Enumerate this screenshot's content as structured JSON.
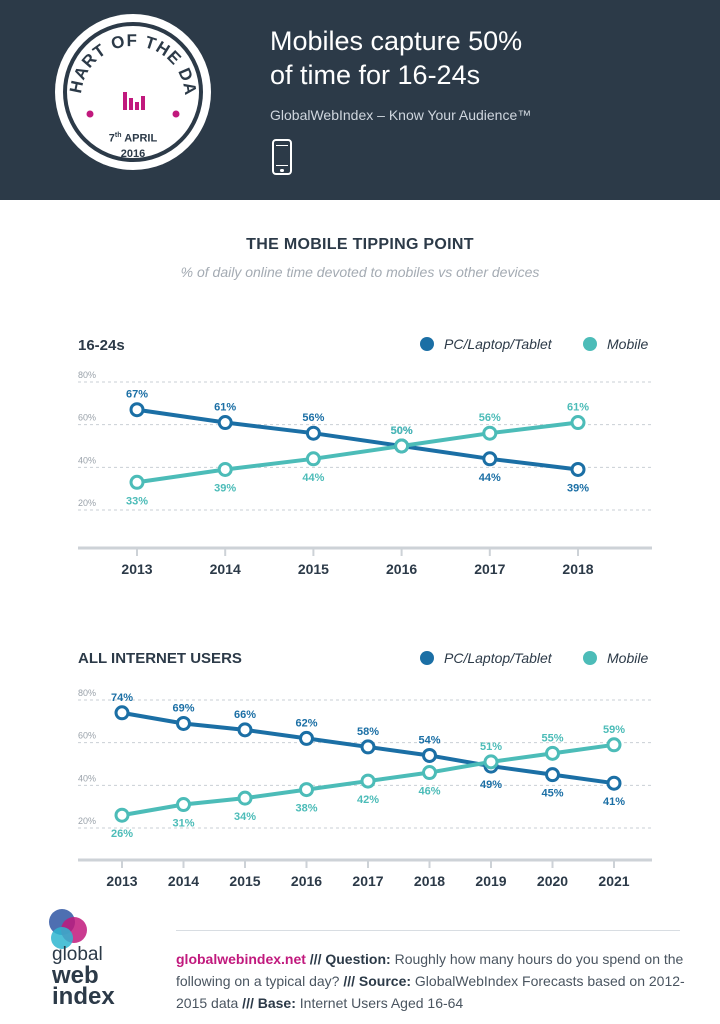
{
  "header": {
    "title_line1": "Mobiles capture 50%",
    "title_line2": "of time for 16-24s",
    "brand_line": "GlobalWebIndex – Know Your Audience™",
    "badge_text": "CHART OF THE DAY",
    "badge_day": "7",
    "badge_day_suffix": "th",
    "badge_month": "APRIL",
    "badge_year": "2016",
    "icon": "phone-icon"
  },
  "heading": "THE MOBILE TIPPING POINT",
  "subheading": "% of daily online time devoted to mobiles vs other devices",
  "colors": {
    "pc": "#1b6fa5",
    "mobile": "#4cbcb8",
    "header_bg": "#2c3a48",
    "accent": "#c1197d"
  },
  "legend": {
    "pc": "PC/Laptop/Tablet",
    "mobile": "Mobile"
  },
  "chart_data": [
    {
      "type": "line",
      "title": "16-24s",
      "x": [
        "2013",
        "2014",
        "2015",
        "2016",
        "2017",
        "2018"
      ],
      "yticks": [
        "80%",
        "60%",
        "40%",
        "20%"
      ],
      "ylim": [
        10,
        80
      ],
      "grid": true,
      "legend": "top-right",
      "series": [
        {
          "name": "PC/Laptop/Tablet",
          "values": [
            67,
            61,
            56,
            50,
            44,
            39
          ],
          "labels": [
            "67%",
            "61%",
            "56%",
            "50%",
            "44%",
            "39%"
          ]
        },
        {
          "name": "Mobile",
          "values": [
            33,
            39,
            44,
            50,
            56,
            61
          ],
          "labels": [
            "33%",
            "39%",
            "44%",
            "50%",
            "56%",
            "61%"
          ]
        }
      ]
    },
    {
      "type": "line",
      "title": "ALL INTERNET USERS",
      "x": [
        "2013",
        "2014",
        "2015",
        "2016",
        "2017",
        "2018",
        "2019",
        "2020",
        "2021"
      ],
      "yticks": [
        "80%",
        "60%",
        "40%",
        "20%"
      ],
      "ylim": [
        10,
        80
      ],
      "grid": true,
      "legend": "top-right",
      "series": [
        {
          "name": "PC/Laptop/Tablet",
          "values": [
            74,
            69,
            66,
            62,
            58,
            54,
            49,
            45,
            41
          ],
          "labels": [
            "74%",
            "69%",
            "66%",
            "62%",
            "58%",
            "54%",
            "49%",
            "45%",
            "41%"
          ]
        },
        {
          "name": "Mobile",
          "values": [
            26,
            31,
            34,
            38,
            42,
            46,
            51,
            55,
            59
          ],
          "labels": [
            "26%",
            "31%",
            "34%",
            "38%",
            "42%",
            "46%",
            "51%",
            "55%",
            "59%"
          ]
        }
      ]
    }
  ],
  "footer": {
    "logo_line1": "global",
    "logo_line2": "web",
    "logo_line3": "index",
    "site": "globalwebindex.net",
    "sep1": " /// ",
    "question_label": "Question:",
    "question_text": " Roughly how many hours do you spend on the following on a typical day?",
    "sep2": " /// ",
    "source_label": "Source:",
    "source_text": " GlobalWebIndex Forecasts based on 2012-2015 data",
    "sep3": " /// ",
    "base_label": "Base:",
    "base_text": " Internet Users Aged 16-64"
  }
}
